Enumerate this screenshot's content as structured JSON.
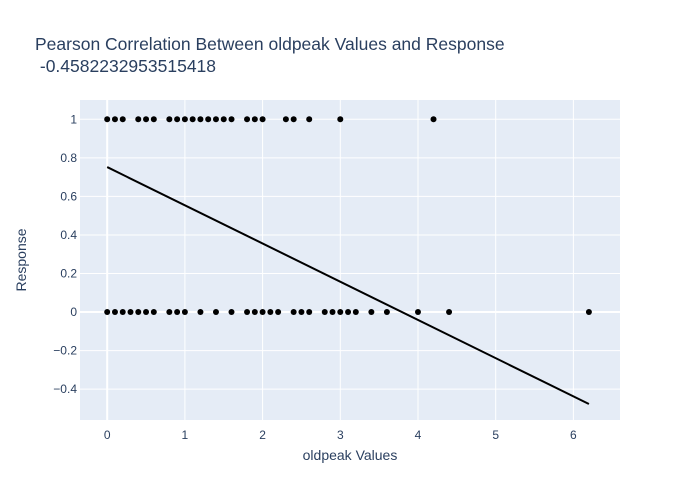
{
  "chart_data": {
    "type": "scatter",
    "title": "Pearson Correlation Between oldpeak Values and Response",
    "subtitle": "-0.4582232953515418",
    "xlabel": "oldpeak Values",
    "ylabel": "Response",
    "xlim": [
      -0.35,
      6.6
    ],
    "ylim": [
      -0.56,
      1.1
    ],
    "x_ticks": [
      0,
      1,
      2,
      3,
      4,
      5,
      6
    ],
    "y_ticks": [
      -0.4,
      -0.2,
      0,
      0.2,
      0.4,
      0.6,
      0.8,
      1
    ],
    "y_tick_labels": [
      "−0.4",
      "−0.2",
      "0",
      "0.2",
      "0.4",
      "0.6",
      "0.8",
      "1"
    ],
    "grid": true,
    "colors": {
      "plot_bg": "#e5ecf6",
      "grid": "#ffffff",
      "marker": "#000000",
      "line": "#000000",
      "text": "#2a3f5f"
    },
    "series": [
      {
        "type": "scatter",
        "points": [
          [
            0,
            1
          ],
          [
            0.1,
            1
          ],
          [
            0.2,
            1
          ],
          [
            0.4,
            1
          ],
          [
            0.5,
            1
          ],
          [
            0.6,
            1
          ],
          [
            0.8,
            1
          ],
          [
            0.9,
            1
          ],
          [
            1.0,
            1
          ],
          [
            1.1,
            1
          ],
          [
            1.2,
            1
          ],
          [
            1.3,
            1
          ],
          [
            1.4,
            1
          ],
          [
            1.5,
            1
          ],
          [
            1.6,
            1
          ],
          [
            1.8,
            1
          ],
          [
            1.9,
            1
          ],
          [
            2.0,
            1
          ],
          [
            2.3,
            1
          ],
          [
            2.4,
            1
          ],
          [
            2.6,
            1
          ],
          [
            3.0,
            1
          ],
          [
            4.2,
            1
          ],
          [
            0,
            0
          ],
          [
            0.1,
            0
          ],
          [
            0.2,
            0
          ],
          [
            0.3,
            0
          ],
          [
            0.4,
            0
          ],
          [
            0.5,
            0
          ],
          [
            0.6,
            0
          ],
          [
            0.8,
            0
          ],
          [
            0.9,
            0
          ],
          [
            1.0,
            0
          ],
          [
            1.2,
            0
          ],
          [
            1.4,
            0
          ],
          [
            1.6,
            0
          ],
          [
            1.8,
            0
          ],
          [
            1.9,
            0
          ],
          [
            2.0,
            0
          ],
          [
            2.1,
            0
          ],
          [
            2.2,
            0
          ],
          [
            2.4,
            0
          ],
          [
            2.5,
            0
          ],
          [
            2.6,
            0
          ],
          [
            2.8,
            0
          ],
          [
            2.9,
            0
          ],
          [
            3.0,
            0
          ],
          [
            3.1,
            0
          ],
          [
            3.2,
            0
          ],
          [
            3.4,
            0
          ],
          [
            3.6,
            0
          ],
          [
            4.0,
            0
          ],
          [
            4.4,
            0
          ],
          [
            6.2,
            0
          ]
        ]
      },
      {
        "type": "line",
        "points": [
          [
            0,
            0.752
          ],
          [
            6.2,
            -0.477
          ]
        ]
      }
    ]
  }
}
